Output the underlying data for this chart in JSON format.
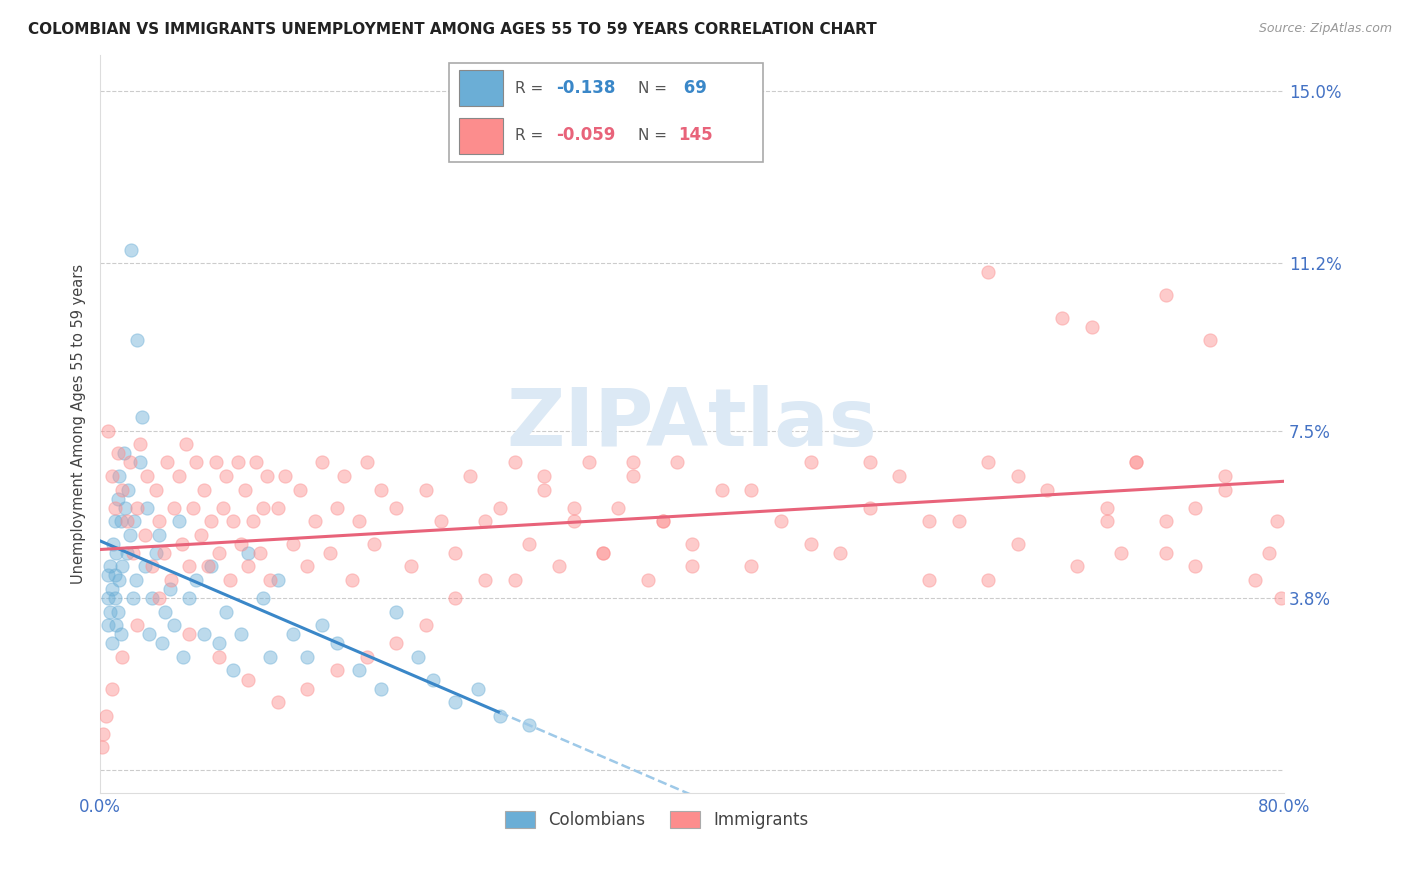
{
  "title": "COLOMBIAN VS IMMIGRANTS UNEMPLOYMENT AMONG AGES 55 TO 59 YEARS CORRELATION CHART",
  "source": "Source: ZipAtlas.com",
  "ylabel": "Unemployment Among Ages 55 to 59 years",
  "xlim": [
    0.0,
    0.8
  ],
  "ylim": [
    -0.005,
    0.158
  ],
  "yticks": [
    0.0,
    0.038,
    0.075,
    0.112,
    0.15
  ],
  "ytick_labels": [
    "",
    "3.8%",
    "7.5%",
    "11.2%",
    "15.0%"
  ],
  "xticks": [
    0.0,
    0.2,
    0.4,
    0.6,
    0.8
  ],
  "xtick_labels": [
    "0.0%",
    "",
    "",
    "",
    "80.0%"
  ],
  "colombian_color": "#6baed6",
  "immigrant_color": "#fc8d8d",
  "colombian_R": -0.138,
  "colombian_N": 69,
  "immigrant_R": -0.059,
  "immigrant_N": 145,
  "background_color": "#ffffff",
  "grid_color": "#cccccc",
  "title_fontsize": 11,
  "tick_label_color": "#4472c4",
  "watermark_color": "#dce9f5",
  "col_line_color": "#3a87c8",
  "col_dash_color": "#9ec9e8",
  "imm_line_color": "#e8637a",
  "colombian_scatter_x": [
    0.005,
    0.005,
    0.005,
    0.007,
    0.007,
    0.008,
    0.008,
    0.009,
    0.01,
    0.01,
    0.01,
    0.011,
    0.011,
    0.012,
    0.012,
    0.013,
    0.013,
    0.014,
    0.014,
    0.015,
    0.016,
    0.017,
    0.018,
    0.019,
    0.02,
    0.021,
    0.022,
    0.023,
    0.024,
    0.025,
    0.027,
    0.028,
    0.03,
    0.032,
    0.033,
    0.035,
    0.038,
    0.04,
    0.042,
    0.044,
    0.047,
    0.05,
    0.053,
    0.056,
    0.06,
    0.065,
    0.07,
    0.075,
    0.08,
    0.085,
    0.09,
    0.095,
    0.1,
    0.11,
    0.115,
    0.12,
    0.13,
    0.14,
    0.15,
    0.16,
    0.175,
    0.19,
    0.2,
    0.215,
    0.225,
    0.24,
    0.255,
    0.27,
    0.29
  ],
  "colombian_scatter_y": [
    0.038,
    0.032,
    0.043,
    0.045,
    0.035,
    0.04,
    0.028,
    0.05,
    0.055,
    0.038,
    0.043,
    0.048,
    0.032,
    0.06,
    0.035,
    0.065,
    0.042,
    0.055,
    0.03,
    0.045,
    0.07,
    0.058,
    0.048,
    0.062,
    0.052,
    0.115,
    0.038,
    0.055,
    0.042,
    0.095,
    0.068,
    0.078,
    0.045,
    0.058,
    0.03,
    0.038,
    0.048,
    0.052,
    0.028,
    0.035,
    0.04,
    0.032,
    0.055,
    0.025,
    0.038,
    0.042,
    0.03,
    0.045,
    0.028,
    0.035,
    0.022,
    0.03,
    0.048,
    0.038,
    0.025,
    0.042,
    0.03,
    0.025,
    0.032,
    0.028,
    0.022,
    0.018,
    0.035,
    0.025,
    0.02,
    0.015,
    0.018,
    0.012,
    0.01
  ],
  "immigrant_scatter_x": [
    0.005,
    0.008,
    0.01,
    0.012,
    0.015,
    0.018,
    0.02,
    0.022,
    0.025,
    0.027,
    0.03,
    0.032,
    0.035,
    0.038,
    0.04,
    0.043,
    0.045,
    0.048,
    0.05,
    0.053,
    0.055,
    0.058,
    0.06,
    0.063,
    0.065,
    0.068,
    0.07,
    0.073,
    0.075,
    0.078,
    0.08,
    0.083,
    0.085,
    0.088,
    0.09,
    0.093,
    0.095,
    0.098,
    0.1,
    0.103,
    0.105,
    0.108,
    0.11,
    0.113,
    0.115,
    0.12,
    0.125,
    0.13,
    0.135,
    0.14,
    0.145,
    0.15,
    0.155,
    0.16,
    0.165,
    0.17,
    0.175,
    0.18,
    0.185,
    0.19,
    0.2,
    0.21,
    0.22,
    0.23,
    0.24,
    0.25,
    0.26,
    0.27,
    0.28,
    0.29,
    0.3,
    0.31,
    0.32,
    0.33,
    0.34,
    0.35,
    0.36,
    0.37,
    0.38,
    0.39,
    0.4,
    0.42,
    0.44,
    0.46,
    0.48,
    0.5,
    0.52,
    0.54,
    0.56,
    0.58,
    0.6,
    0.62,
    0.64,
    0.66,
    0.68,
    0.7,
    0.72,
    0.74,
    0.76,
    0.78,
    0.79,
    0.795,
    0.798,
    0.76,
    0.74,
    0.72,
    0.7,
    0.69,
    0.68,
    0.62,
    0.6,
    0.56,
    0.52,
    0.48,
    0.44,
    0.4,
    0.38,
    0.36,
    0.34,
    0.32,
    0.3,
    0.28,
    0.26,
    0.24,
    0.22,
    0.2,
    0.18,
    0.16,
    0.14,
    0.12,
    0.1,
    0.08,
    0.06,
    0.04,
    0.025,
    0.015,
    0.008,
    0.004,
    0.002,
    0.001,
    0.6,
    0.65,
    0.67,
    0.72,
    0.75
  ],
  "immigrant_scatter_y": [
    0.075,
    0.065,
    0.058,
    0.07,
    0.062,
    0.055,
    0.068,
    0.048,
    0.058,
    0.072,
    0.052,
    0.065,
    0.045,
    0.062,
    0.055,
    0.048,
    0.068,
    0.042,
    0.058,
    0.065,
    0.05,
    0.072,
    0.045,
    0.058,
    0.068,
    0.052,
    0.062,
    0.045,
    0.055,
    0.068,
    0.048,
    0.058,
    0.065,
    0.042,
    0.055,
    0.068,
    0.05,
    0.062,
    0.045,
    0.055,
    0.068,
    0.048,
    0.058,
    0.065,
    0.042,
    0.058,
    0.065,
    0.05,
    0.062,
    0.045,
    0.055,
    0.068,
    0.048,
    0.058,
    0.065,
    0.042,
    0.055,
    0.068,
    0.05,
    0.062,
    0.058,
    0.045,
    0.062,
    0.055,
    0.048,
    0.065,
    0.042,
    0.058,
    0.068,
    0.05,
    0.062,
    0.045,
    0.055,
    0.068,
    0.048,
    0.058,
    0.065,
    0.042,
    0.055,
    0.068,
    0.05,
    0.062,
    0.045,
    0.055,
    0.068,
    0.048,
    0.058,
    0.065,
    0.042,
    0.055,
    0.068,
    0.05,
    0.062,
    0.045,
    0.055,
    0.068,
    0.048,
    0.058,
    0.065,
    0.042,
    0.048,
    0.055,
    0.038,
    0.062,
    0.045,
    0.055,
    0.068,
    0.048,
    0.058,
    0.065,
    0.042,
    0.055,
    0.068,
    0.05,
    0.062,
    0.045,
    0.055,
    0.068,
    0.048,
    0.058,
    0.065,
    0.042,
    0.055,
    0.038,
    0.032,
    0.028,
    0.025,
    0.022,
    0.018,
    0.015,
    0.02,
    0.025,
    0.03,
    0.038,
    0.032,
    0.025,
    0.018,
    0.012,
    0.008,
    0.005,
    0.11,
    0.1,
    0.098,
    0.105,
    0.095
  ]
}
